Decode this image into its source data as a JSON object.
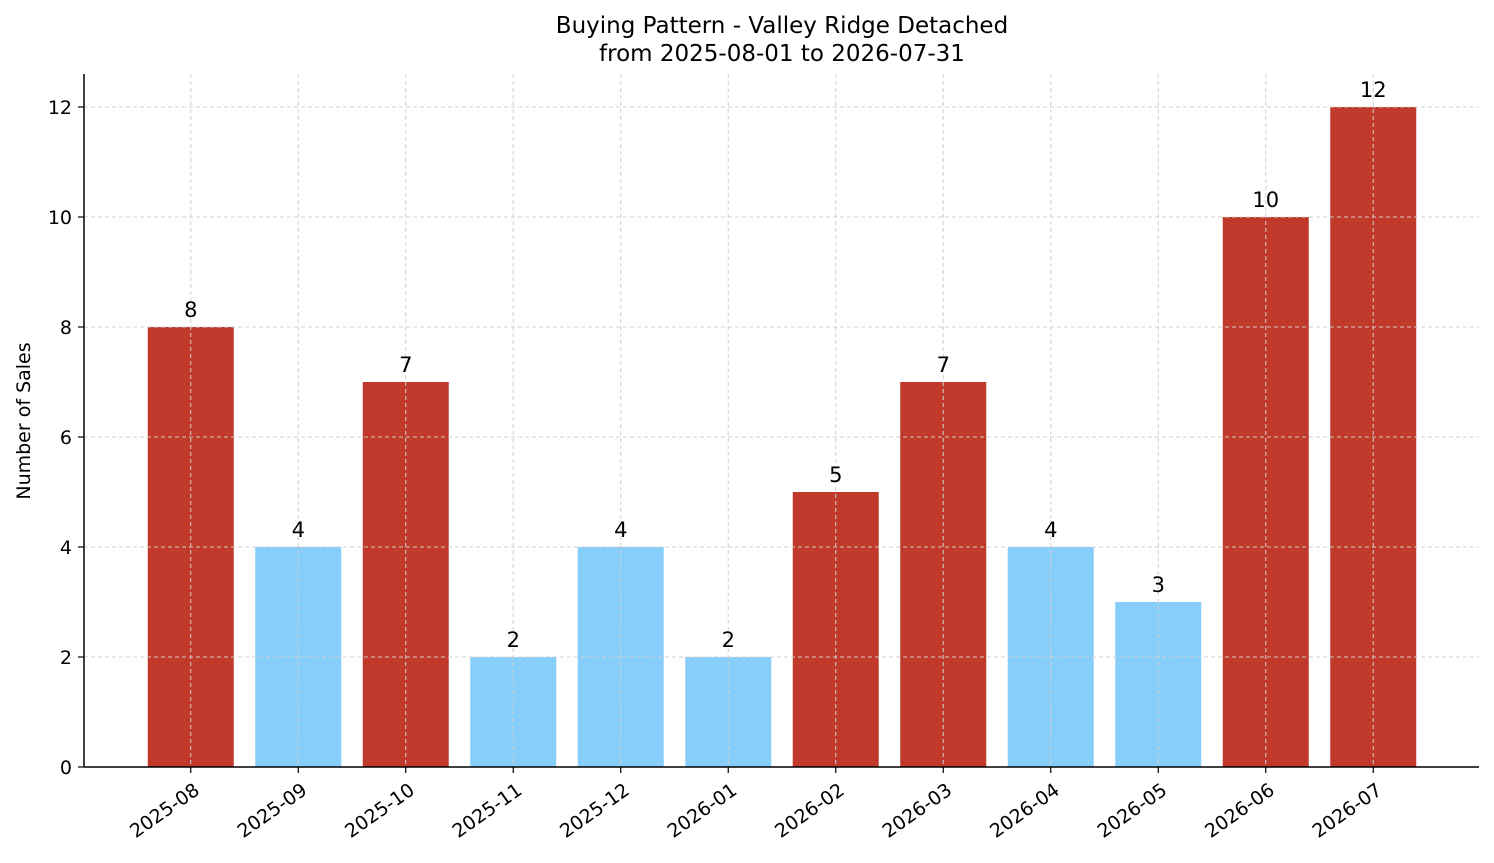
{
  "chart_data": {
    "type": "bar",
    "title_line1": "Buying Pattern - Valley Ridge Detached",
    "title_line2": "from 2025-08-01 to 2026-07-31",
    "xlabel": "",
    "ylabel": "Number of Sales",
    "categories": [
      "2025-08",
      "2025-09",
      "2025-10",
      "2025-11",
      "2025-12",
      "2026-01",
      "2026-02",
      "2026-03",
      "2026-04",
      "2026-05",
      "2026-06",
      "2026-07"
    ],
    "values": [
      8,
      4,
      7,
      2,
      4,
      2,
      5,
      7,
      4,
      3,
      10,
      12
    ],
    "ylim": [
      0,
      12.6
    ],
    "yticks": [
      0,
      2,
      4,
      6,
      8,
      10,
      12
    ],
    "grid": true,
    "colors": {
      "high": "#c0392b",
      "low": "#87cefa"
    },
    "high_threshold": 5
  }
}
